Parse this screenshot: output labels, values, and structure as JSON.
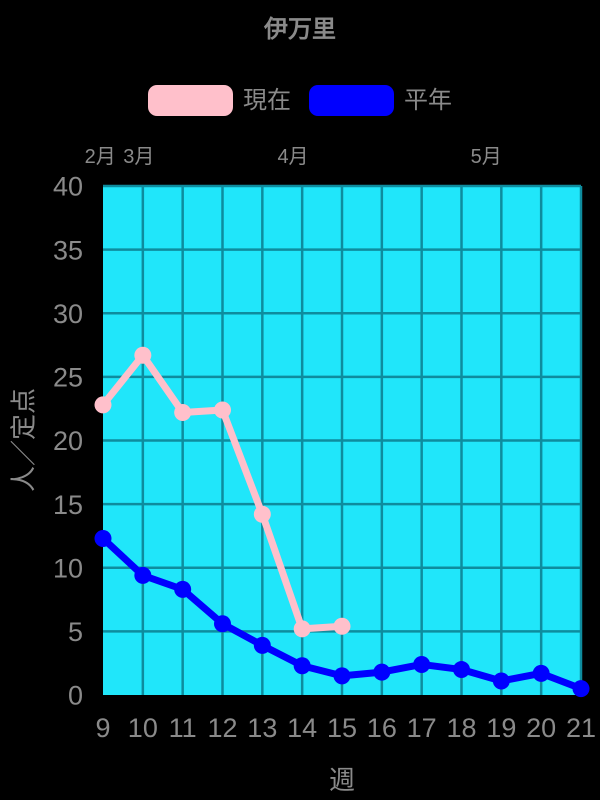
{
  "title": "伊万里",
  "legend": {
    "items": [
      {
        "label": "現在",
        "color": "#FFC0CB"
      },
      {
        "label": "平年",
        "color": "#0000FF"
      }
    ]
  },
  "colors": {
    "background": "#000000",
    "plot_background": "#20E6FA",
    "grid": "#0E8C9E",
    "text": "#8A8A8A"
  },
  "chart_data": {
    "type": "line",
    "title": "伊万里",
    "xlabel": "週",
    "ylabel": "人／定点",
    "xlim": [
      9,
      21
    ],
    "ylim": [
      0,
      40
    ],
    "x_ticks": [
      9,
      10,
      11,
      12,
      13,
      14,
      15,
      16,
      17,
      18,
      19,
      20,
      21
    ],
    "y_ticks": [
      0,
      5,
      10,
      15,
      20,
      25,
      30,
      35,
      40
    ],
    "grid": true,
    "legend_position": "top",
    "series": [
      {
        "name": "現在",
        "color": "#FFC0CB",
        "x": [
          9,
          10,
          11,
          12,
          13,
          14,
          15
        ],
        "values": [
          22.8,
          26.7,
          22.2,
          22.4,
          14.2,
          5.2,
          5.4
        ]
      },
      {
        "name": "平年",
        "color": "#0000FF",
        "x": [
          9,
          10,
          11,
          12,
          13,
          14,
          15,
          16,
          17,
          18,
          19,
          20,
          21
        ],
        "values": [
          12.3,
          9.4,
          8.3,
          5.6,
          3.9,
          2.3,
          1.5,
          1.8,
          2.4,
          2.0,
          1.1,
          1.7,
          0.5
        ]
      }
    ],
    "month_annotations": [
      {
        "label": "2月",
        "week": 8.93
      },
      {
        "label": "3月",
        "week": 9.9
      },
      {
        "label": "4月",
        "week": 13.77
      },
      {
        "label": "5月",
        "week": 18.62
      }
    ]
  }
}
